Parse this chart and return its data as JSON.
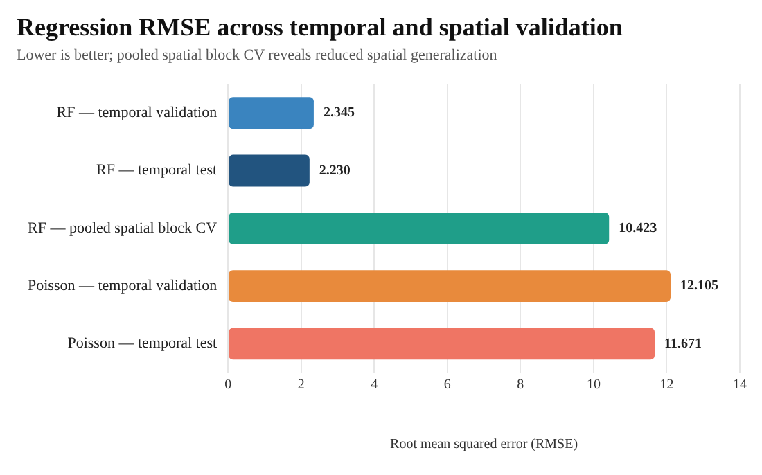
{
  "chart_data": {
    "type": "bar",
    "orientation": "horizontal",
    "title": "Regression RMSE across temporal and spatial validation",
    "subtitle": "Lower is better; pooled spatial block CV reveals reduced spatial generalization",
    "xlabel": "Root mean squared error (RMSE)",
    "categories": [
      "RF — temporal validation",
      "RF — temporal test",
      "RF — pooled spatial block CV",
      "Poisson — temporal validation",
      "Poisson — temporal test"
    ],
    "values": [
      2.345,
      2.23,
      10.423,
      12.105,
      11.671
    ],
    "colors": [
      "#3a84bf",
      "#22547f",
      "#1f9e89",
      "#e88a3c",
      "#ef7564"
    ],
    "xlim": [
      0,
      14
    ],
    "xticks": [
      0,
      2,
      4,
      6,
      8,
      10,
      12,
      14
    ],
    "value_labels": [
      "2.345",
      "2.230",
      "10.423",
      "12.105",
      "11.671"
    ],
    "grid": "x",
    "legend": false
  }
}
